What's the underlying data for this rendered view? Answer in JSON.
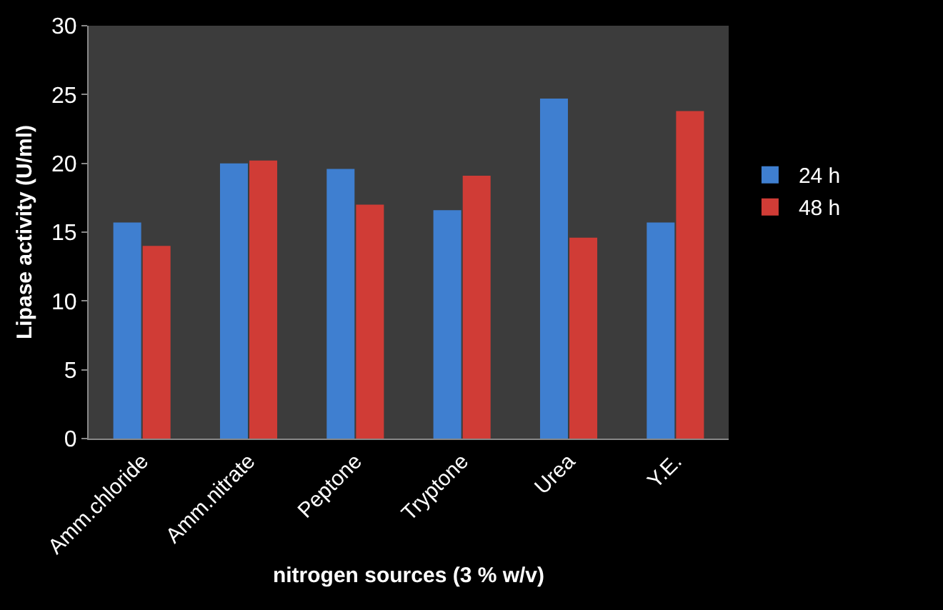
{
  "chart_data": {
    "type": "bar",
    "xlabel": "nitrogen sources (3 % w/v)",
    "ylabel": "Lipase activity (U/ml)",
    "categories": [
      "Amm.chloride",
      "Amm.nitrate",
      "Peptone",
      "Tryptone",
      "Urea",
      "Y.E."
    ],
    "series": [
      {
        "name": "24 h",
        "color": "#3f7fd0",
        "values": [
          15.7,
          20.0,
          19.6,
          16.6,
          24.7,
          15.7
        ]
      },
      {
        "name": "48 h",
        "color": "#d03c36",
        "values": [
          14.0,
          20.2,
          17.0,
          19.1,
          14.6,
          23.8
        ]
      }
    ],
    "ylim": [
      0,
      30
    ],
    "yticks": [
      0,
      5,
      10,
      15,
      20,
      25,
      30
    ],
    "grid": false,
    "legend": "right"
  }
}
